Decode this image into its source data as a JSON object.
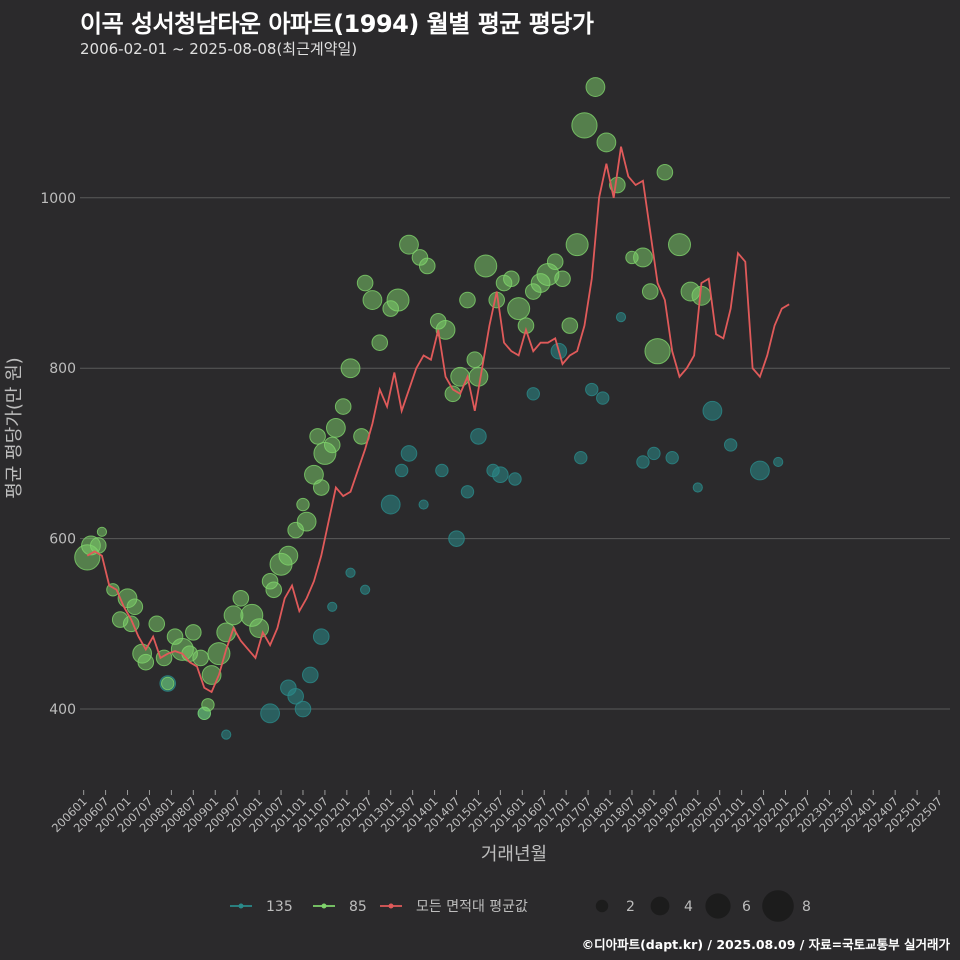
{
  "header": {
    "title": "이곡 성서청남타운 아파트(1994) 월별 평균 평당가",
    "subtitle": "2006-02-01 ~ 2025-08-08(최근계약일)"
  },
  "footer": {
    "credit": "©디아파트(dapt.kr) / 2025.08.09 / 자료=국토교통부 실거래가"
  },
  "colors": {
    "background": "#2b2a2c",
    "grid": "#5a5a5a",
    "series_135": "#2a8a8a",
    "series_85": "#7fd36b",
    "avg_line": "#e05a5a"
  },
  "chart_data": {
    "type": "scatter",
    "title": "이곡 성서청남타운 아파트(1994) 월별 평균 평당가",
    "xlabel": "거래년월",
    "ylabel": "평균 평당가(만 원)",
    "ylim": [
      305,
      1150
    ],
    "xlim": [
      "2005-12",
      "2025-10"
    ],
    "grid": true,
    "legend_placement": "bottom",
    "x_ticks": [
      "200601",
      "200607",
      "200701",
      "200707",
      "200801",
      "200807",
      "200901",
      "200907",
      "201001",
      "201007",
      "201101",
      "201107",
      "201201",
      "201207",
      "201301",
      "201307",
      "201401",
      "201407",
      "201501",
      "201507",
      "201601",
      "201607",
      "201701",
      "201707",
      "201801",
      "201807",
      "201901",
      "201907",
      "202001",
      "202007",
      "202101",
      "202107",
      "202201",
      "202207",
      "202301",
      "202307",
      "202401",
      "202407",
      "202501",
      "202507"
    ],
    "y_ticks": [
      400,
      600,
      800,
      1000
    ],
    "legend": {
      "series": [
        {
          "name": "135",
          "color": "#2a8a8a"
        },
        {
          "name": "85",
          "color": "#7fd36b"
        },
        {
          "name": "모든 면적대 평균값",
          "color": "#e05a5a"
        }
      ],
      "sizes": [
        2,
        4,
        6,
        8
      ]
    },
    "series": [
      {
        "name": "85",
        "points": [
          [
            "2006-02",
            578,
            6
          ],
          [
            "2006-03",
            592,
            4
          ],
          [
            "2006-05",
            592,
            3
          ],
          [
            "2006-06",
            608,
            1
          ],
          [
            "2006-09",
            540,
            2
          ],
          [
            "2006-11",
            505,
            3
          ],
          [
            "2007-01",
            530,
            4
          ],
          [
            "2007-02",
            500,
            3
          ],
          [
            "2007-03",
            520,
            3
          ],
          [
            "2007-05",
            465,
            4
          ],
          [
            "2007-06",
            455,
            3
          ],
          [
            "2007-09",
            500,
            3
          ],
          [
            "2007-11",
            460,
            3
          ],
          [
            "2007-12",
            430,
            2
          ],
          [
            "2008-02",
            485,
            3
          ],
          [
            "2008-04",
            470,
            5
          ],
          [
            "2008-06",
            465,
            3
          ],
          [
            "2008-07",
            490,
            3
          ],
          [
            "2008-09",
            460,
            3
          ],
          [
            "2008-10",
            395,
            2
          ],
          [
            "2008-11",
            405,
            2
          ],
          [
            "2008-12",
            440,
            4
          ],
          [
            "2009-02",
            465,
            5
          ],
          [
            "2009-04",
            490,
            4
          ],
          [
            "2009-06",
            510,
            4
          ],
          [
            "2009-08",
            530,
            3
          ],
          [
            "2009-11",
            510,
            5
          ],
          [
            "2010-01",
            495,
            4
          ],
          [
            "2010-04",
            550,
            3
          ],
          [
            "2010-05",
            540,
            3
          ],
          [
            "2010-07",
            570,
            5
          ],
          [
            "2010-09",
            580,
            4
          ],
          [
            "2010-11",
            610,
            3
          ],
          [
            "2011-01",
            640,
            2
          ],
          [
            "2011-02",
            620,
            4
          ],
          [
            "2011-04",
            675,
            4
          ],
          [
            "2011-05",
            720,
            3
          ],
          [
            "2011-06",
            660,
            3
          ],
          [
            "2011-07",
            700,
            5
          ],
          [
            "2011-09",
            710,
            3
          ],
          [
            "2011-10",
            730,
            4
          ],
          [
            "2011-12",
            755,
            3
          ],
          [
            "2012-02",
            800,
            4
          ],
          [
            "2012-05",
            720,
            3
          ],
          [
            "2012-06",
            900,
            3
          ],
          [
            "2012-08",
            880,
            4
          ],
          [
            "2012-10",
            830,
            3
          ],
          [
            "2013-01",
            870,
            3
          ],
          [
            "2013-03",
            880,
            5
          ],
          [
            "2013-06",
            945,
            4
          ],
          [
            "2013-09",
            930,
            3
          ],
          [
            "2013-11",
            920,
            3
          ],
          [
            "2014-02",
            855,
            3
          ],
          [
            "2014-04",
            845,
            4
          ],
          [
            "2014-06",
            770,
            3
          ],
          [
            "2014-08",
            790,
            4
          ],
          [
            "2014-10",
            880,
            3
          ],
          [
            "2014-12",
            810,
            3
          ],
          [
            "2015-01",
            790,
            4
          ],
          [
            "2015-03",
            920,
            5
          ],
          [
            "2015-06",
            880,
            3
          ],
          [
            "2015-08",
            900,
            3
          ],
          [
            "2015-10",
            905,
            3
          ],
          [
            "2015-12",
            870,
            5
          ],
          [
            "2016-02",
            850,
            3
          ],
          [
            "2016-04",
            890,
            3
          ],
          [
            "2016-06",
            900,
            4
          ],
          [
            "2016-08",
            910,
            5
          ],
          [
            "2016-10",
            925,
            3
          ],
          [
            "2016-12",
            905,
            3
          ],
          [
            "2017-02",
            850,
            3
          ],
          [
            "2017-04",
            945,
            5
          ],
          [
            "2017-06",
            1085,
            6
          ],
          [
            "2017-09",
            1130,
            4
          ],
          [
            "2017-12",
            1065,
            4
          ],
          [
            "2018-03",
            1015,
            3
          ],
          [
            "2018-07",
            930,
            2
          ],
          [
            "2018-10",
            930,
            4
          ],
          [
            "2018-12",
            890,
            3
          ],
          [
            "2019-02",
            820,
            6
          ],
          [
            "2019-04",
            1030,
            3
          ],
          [
            "2019-08",
            945,
            5
          ],
          [
            "2019-11",
            890,
            4
          ],
          [
            "2020-02",
            885,
            4
          ]
        ]
      },
      {
        "name": "135",
        "points": [
          [
            "2007-12",
            430,
            3
          ],
          [
            "2008-10",
            395,
            2
          ],
          [
            "2009-04",
            370,
            1
          ],
          [
            "2010-04",
            395,
            4
          ],
          [
            "2010-09",
            425,
            3
          ],
          [
            "2010-11",
            415,
            3
          ],
          [
            "2011-01",
            400,
            3
          ],
          [
            "2011-03",
            440,
            3
          ],
          [
            "2011-06",
            485,
            3
          ],
          [
            "2011-09",
            520,
            1
          ],
          [
            "2012-02",
            560,
            1
          ],
          [
            "2012-06",
            540,
            1
          ],
          [
            "2013-01",
            640,
            4
          ],
          [
            "2013-04",
            680,
            2
          ],
          [
            "2013-06",
            700,
            3
          ],
          [
            "2013-10",
            640,
            1
          ],
          [
            "2014-03",
            680,
            2
          ],
          [
            "2014-07",
            600,
            3
          ],
          [
            "2014-10",
            655,
            2
          ],
          [
            "2015-01",
            720,
            3
          ],
          [
            "2015-05",
            680,
            2
          ],
          [
            "2015-07",
            675,
            3
          ],
          [
            "2015-11",
            670,
            2
          ],
          [
            "2016-04",
            770,
            2
          ],
          [
            "2016-11",
            820,
            3
          ],
          [
            "2017-05",
            695,
            2
          ],
          [
            "2017-08",
            775,
            2
          ],
          [
            "2017-11",
            765,
            2
          ],
          [
            "2018-04",
            860,
            1
          ],
          [
            "2018-10",
            690,
            2
          ],
          [
            "2019-01",
            700,
            2
          ],
          [
            "2019-06",
            695,
            2
          ],
          [
            "2020-01",
            660,
            1
          ],
          [
            "2020-05",
            750,
            4
          ],
          [
            "2020-10",
            710,
            2
          ],
          [
            "2021-06",
            680,
            4
          ],
          [
            "2021-11",
            690,
            1
          ]
        ]
      }
    ],
    "average_line": {
      "name": "모든 면적대 평균값",
      "values": [
        [
          "2006-02",
          580
        ],
        [
          "2006-04",
          585
        ],
        [
          "2006-06",
          580
        ],
        [
          "2006-08",
          545
        ],
        [
          "2006-10",
          540
        ],
        [
          "2006-12",
          520
        ],
        [
          "2007-02",
          505
        ],
        [
          "2007-04",
          485
        ],
        [
          "2007-06",
          470
        ],
        [
          "2007-08",
          485
        ],
        [
          "2007-10",
          460
        ],
        [
          "2007-12",
          465
        ],
        [
          "2008-02",
          468
        ],
        [
          "2008-04",
          465
        ],
        [
          "2008-06",
          455
        ],
        [
          "2008-08",
          450
        ],
        [
          "2008-10",
          425
        ],
        [
          "2008-12",
          420
        ],
        [
          "2009-02",
          440
        ],
        [
          "2009-04",
          470
        ],
        [
          "2009-06",
          495
        ],
        [
          "2009-08",
          480
        ],
        [
          "2009-10",
          470
        ],
        [
          "2009-12",
          460
        ],
        [
          "2010-02",
          490
        ],
        [
          "2010-04",
          475
        ],
        [
          "2010-06",
          495
        ],
        [
          "2010-08",
          530
        ],
        [
          "2010-10",
          545
        ],
        [
          "2010-12",
          515
        ],
        [
          "2011-02",
          530
        ],
        [
          "2011-04",
          550
        ],
        [
          "2011-06",
          580
        ],
        [
          "2011-08",
          620
        ],
        [
          "2011-10",
          660
        ],
        [
          "2011-12",
          650
        ],
        [
          "2012-02",
          655
        ],
        [
          "2012-04",
          680
        ],
        [
          "2012-06",
          705
        ],
        [
          "2012-08",
          735
        ],
        [
          "2012-10",
          775
        ],
        [
          "2012-12",
          755
        ],
        [
          "2013-02",
          795
        ],
        [
          "2013-04",
          750
        ],
        [
          "2013-06",
          775
        ],
        [
          "2013-08",
          800
        ],
        [
          "2013-10",
          815
        ],
        [
          "2013-12",
          810
        ],
        [
          "2014-02",
          845
        ],
        [
          "2014-04",
          790
        ],
        [
          "2014-06",
          775
        ],
        [
          "2014-08",
          770
        ],
        [
          "2014-10",
          790
        ],
        [
          "2014-12",
          750
        ],
        [
          "2015-02",
          800
        ],
        [
          "2015-04",
          850
        ],
        [
          "2015-06",
          890
        ],
        [
          "2015-08",
          830
        ],
        [
          "2015-10",
          820
        ],
        [
          "2015-12",
          815
        ],
        [
          "2016-02",
          845
        ],
        [
          "2016-04",
          820
        ],
        [
          "2016-06",
          830
        ],
        [
          "2016-08",
          830
        ],
        [
          "2016-10",
          835
        ],
        [
          "2016-12",
          805
        ],
        [
          "2017-02",
          815
        ],
        [
          "2017-04",
          820
        ],
        [
          "2017-06",
          850
        ],
        [
          "2017-08",
          905
        ],
        [
          "2017-10",
          1000
        ],
        [
          "2017-12",
          1040
        ],
        [
          "2018-02",
          1000
        ],
        [
          "2018-04",
          1060
        ],
        [
          "2018-06",
          1025
        ],
        [
          "2018-08",
          1015
        ],
        [
          "2018-10",
          1020
        ],
        [
          "2018-12",
          960
        ],
        [
          "2019-02",
          900
        ],
        [
          "2019-04",
          880
        ],
        [
          "2019-06",
          820
        ],
        [
          "2019-08",
          790
        ],
        [
          "2019-10",
          800
        ],
        [
          "2019-12",
          815
        ],
        [
          "2020-02",
          900
        ],
        [
          "2020-04",
          905
        ],
        [
          "2020-06",
          840
        ],
        [
          "2020-08",
          835
        ],
        [
          "2020-10",
          870
        ],
        [
          "2020-12",
          935
        ],
        [
          "2021-02",
          925
        ],
        [
          "2021-04",
          800
        ],
        [
          "2021-06",
          790
        ],
        [
          "2021-08",
          815
        ],
        [
          "2021-10",
          850
        ],
        [
          "2021-12",
          870
        ],
        [
          "2022-02",
          875
        ]
      ]
    }
  }
}
